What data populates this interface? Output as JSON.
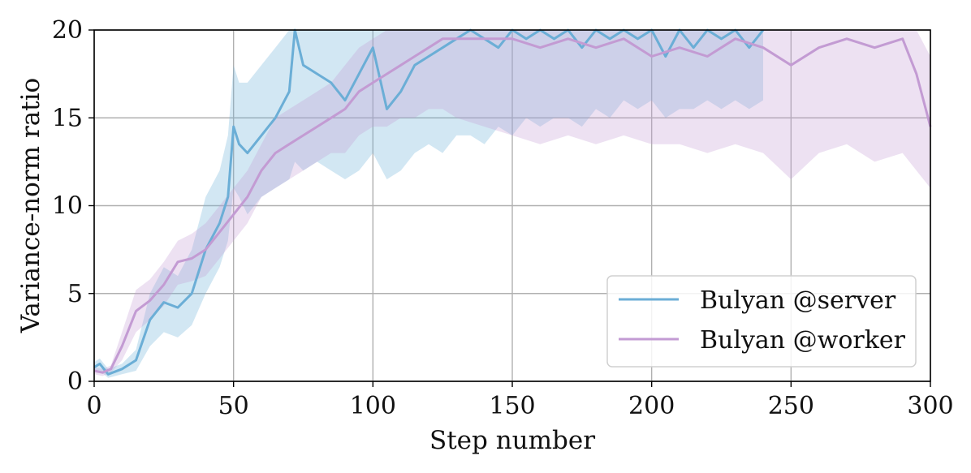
{
  "chart_data": {
    "type": "line",
    "xlabel": "Step number",
    "ylabel": "Variance-norm ratio",
    "xlim": [
      0,
      300
    ],
    "ylim": [
      0,
      20
    ],
    "xticks": [
      0,
      50,
      100,
      150,
      200,
      250,
      300
    ],
    "yticks": [
      0,
      5,
      10,
      15,
      20
    ],
    "xtick_labels": [
      "0",
      "50",
      "100",
      "150",
      "200",
      "250",
      "300"
    ],
    "ytick_labels": [
      "0",
      "5",
      "10",
      "15",
      "20"
    ],
    "grid": true,
    "legend_position": "lower-right",
    "colors": {
      "server": "#6baed6",
      "worker": "#c39bd3"
    },
    "series": [
      {
        "name": "Bulyan @server",
        "color": "#6baed6",
        "x": [
          0,
          2,
          5,
          10,
          15,
          20,
          25,
          30,
          35,
          40,
          45,
          48,
          50,
          52,
          55,
          60,
          65,
          70,
          72,
          75,
          80,
          85,
          90,
          95,
          100,
          105,
          110,
          115,
          120,
          125,
          130,
          135,
          140,
          145,
          150,
          155,
          160,
          165,
          170,
          175,
          180,
          185,
          190,
          195,
          200,
          205,
          210,
          215,
          220,
          225,
          230,
          235,
          240
        ],
        "y": [
          0.8,
          1.0,
          0.4,
          0.7,
          1.2,
          3.5,
          4.5,
          4.2,
          5.0,
          7.5,
          9.0,
          10.5,
          14.5,
          13.5,
          13.0,
          14.0,
          15.0,
          16.5,
          20.0,
          18.0,
          17.5,
          17.0,
          16.0,
          17.5,
          19.0,
          15.5,
          16.5,
          18.0,
          18.5,
          19.0,
          19.5,
          20.0,
          19.5,
          19.0,
          20.0,
          19.5,
          20.0,
          19.5,
          20.0,
          19.0,
          20.0,
          19.5,
          20.0,
          19.5,
          20.0,
          18.5,
          20.0,
          19.0,
          20.0,
          19.5,
          20.0,
          19.0,
          20.0
        ],
        "lower": [
          0.5,
          0.6,
          0.2,
          0.4,
          0.6,
          2.0,
          2.8,
          2.5,
          3.2,
          5.0,
          6.5,
          8.0,
          11.0,
          10.5,
          9.5,
          10.5,
          11.0,
          11.5,
          12.5,
          12.0,
          12.5,
          12.0,
          11.5,
          12.0,
          13.0,
          11.5,
          12.0,
          13.0,
          13.5,
          13.0,
          14.0,
          14.0,
          13.5,
          14.5,
          14.0,
          15.0,
          14.5,
          15.0,
          15.0,
          14.5,
          15.5,
          15.0,
          16.0,
          15.5,
          16.0,
          15.0,
          15.5,
          15.5,
          16.0,
          15.5,
          16.0,
          15.5,
          16.0
        ],
        "upper": [
          1.1,
          1.3,
          0.7,
          1.0,
          1.8,
          5.0,
          6.5,
          6.0,
          7.5,
          10.5,
          12.0,
          14.0,
          18.0,
          17.0,
          17.0,
          18.0,
          19.0,
          20.0,
          20.0,
          20.0,
          20.0,
          20.0,
          20.0,
          20.0,
          20.0,
          20.0,
          20.0,
          20.0,
          20.0,
          20.0,
          20.0,
          20.0,
          20.0,
          20.0,
          20.0,
          20.0,
          20.0,
          20.0,
          20.0,
          20.0,
          20.0,
          20.0,
          20.0,
          20.0,
          20.0,
          20.0,
          20.0,
          20.0,
          20.0,
          20.0,
          20.0,
          20.0,
          20.0
        ]
      },
      {
        "name": "Bulyan @worker",
        "color": "#c39bd3",
        "x": [
          0,
          3,
          6,
          10,
          15,
          20,
          25,
          30,
          35,
          40,
          45,
          50,
          55,
          60,
          65,
          70,
          75,
          80,
          85,
          90,
          95,
          100,
          105,
          110,
          115,
          120,
          125,
          130,
          140,
          150,
          160,
          170,
          180,
          190,
          200,
          210,
          220,
          230,
          240,
          250,
          260,
          270,
          280,
          290,
          295,
          300
        ],
        "y": [
          0.6,
          0.5,
          0.7,
          2.0,
          4.0,
          4.6,
          5.5,
          6.8,
          7.0,
          7.5,
          8.5,
          9.5,
          10.5,
          12.0,
          13.0,
          13.5,
          14.0,
          14.5,
          15.0,
          15.5,
          16.5,
          17.0,
          17.5,
          18.0,
          18.5,
          19.0,
          19.5,
          19.5,
          19.5,
          19.5,
          19.0,
          19.5,
          19.0,
          19.5,
          18.5,
          19.0,
          18.5,
          19.5,
          19.0,
          18.0,
          19.0,
          19.5,
          19.0,
          19.5,
          17.5,
          14.5
        ],
        "lower": [
          0.4,
          0.3,
          0.5,
          1.2,
          2.8,
          3.5,
          4.3,
          5.5,
          5.7,
          6.0,
          7.0,
          8.0,
          9.0,
          10.5,
          11.0,
          11.5,
          12.0,
          12.5,
          13.0,
          13.0,
          14.0,
          14.5,
          14.5,
          15.0,
          15.0,
          15.5,
          15.5,
          15.0,
          14.5,
          14.0,
          13.5,
          14.0,
          13.5,
          14.0,
          13.5,
          13.5,
          13.0,
          13.5,
          13.0,
          11.5,
          13.0,
          13.5,
          12.5,
          13.0,
          12.0,
          11.0
        ],
        "upper": [
          0.8,
          0.7,
          0.9,
          2.8,
          5.2,
          5.8,
          6.8,
          8.0,
          8.4,
          9.0,
          10.0,
          11.0,
          12.0,
          13.5,
          15.0,
          15.5,
          16.0,
          16.5,
          17.0,
          18.0,
          19.0,
          19.5,
          20.0,
          20.0,
          20.0,
          20.0,
          20.0,
          20.0,
          20.0,
          20.0,
          20.0,
          20.0,
          20.0,
          20.0,
          20.0,
          20.0,
          20.0,
          20.0,
          20.0,
          20.0,
          20.0,
          20.0,
          20.0,
          20.0,
          20.0,
          18.5
        ]
      }
    ]
  }
}
